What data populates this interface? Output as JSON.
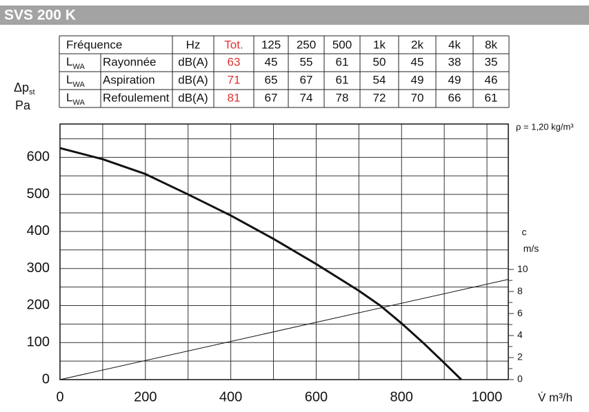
{
  "header": {
    "title": "SVS 200 K"
  },
  "table": {
    "header": [
      "Fréquence",
      "Hz",
      "Tot.",
      "125",
      "250",
      "500",
      "1k",
      "2k",
      "4k",
      "8k"
    ],
    "rows": [
      {
        "quantity": "L",
        "subscript": "WA",
        "name": "Rayonnée",
        "unit": "dB(A)",
        "values": [
          63,
          45,
          55,
          61,
          50,
          45,
          38,
          35
        ]
      },
      {
        "quantity": "L",
        "subscript": "WA",
        "name": "Aspiration",
        "unit": "dB(A)",
        "values": [
          71,
          65,
          67,
          61,
          54,
          49,
          49,
          46
        ]
      },
      {
        "quantity": "L",
        "subscript": "WA",
        "name": "Refoulement",
        "unit": "dB(A)",
        "values": [
          81,
          67,
          74,
          78,
          72,
          70,
          66,
          61
        ]
      }
    ],
    "total_color": "#e0302e"
  },
  "chart_data": {
    "type": "line",
    "y_label": {
      "main": "Δp",
      "sub": "st",
      "unit": "Pa"
    },
    "x_label": "V̇ m³/h",
    "y2_label": {
      "main": "c",
      "unit": "m/s"
    },
    "annotation": "ρ = 1,20 kg/m³",
    "xlim": [
      0,
      1050
    ],
    "xticks": [
      0,
      200,
      400,
      600,
      800,
      1000
    ],
    "x_grid_extra": [
      100,
      300,
      500,
      700,
      900
    ],
    "ylim": [
      0,
      690
    ],
    "yticks": [
      0,
      100,
      200,
      300,
      400,
      500,
      600
    ],
    "y_grid_extra": [
      50,
      150,
      250,
      350,
      450,
      550,
      650
    ],
    "y2lim": [
      0,
      23.2
    ],
    "y2ticks": [
      0,
      2,
      4,
      6,
      8,
      10
    ],
    "y2_minor_ticks": [
      1,
      3,
      5,
      7,
      9
    ],
    "grid": true,
    "series": [
      {
        "color": "#111111",
        "x": [
          0,
          100,
          200,
          300,
          400,
          500,
          600,
          700,
          750,
          800,
          850,
          900,
          940
        ],
        "values": [
          625,
          595,
          555,
          500,
          443,
          380,
          312,
          240,
          200,
          152,
          100,
          45,
          0
        ]
      },
      {
        "color": "#111111",
        "axis": "y2",
        "x": [
          0,
          1050
        ],
        "values": [
          0,
          9.1
        ]
      }
    ]
  }
}
